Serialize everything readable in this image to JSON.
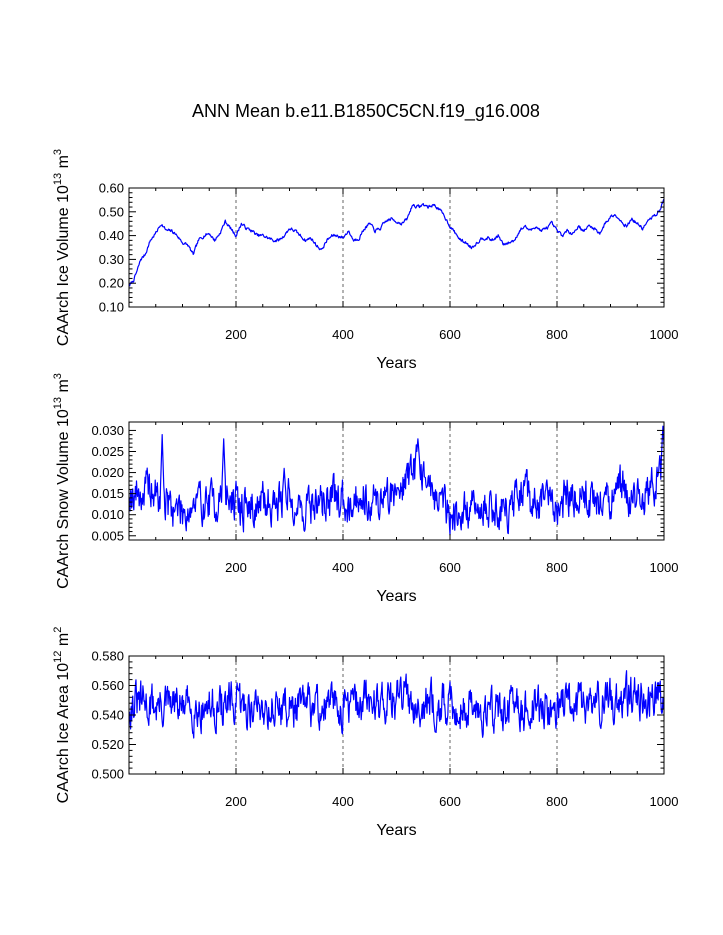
{
  "chart_data": {
    "title": "ANN Mean b.e11.B1850C5CN.f19_g16.008",
    "series_color": "#0000ff",
    "panels": [
      {
        "type": "line",
        "ylabel_main": "CAArch Ice Volume 10",
        "ylabel_sup": "13",
        "ylabel_unit": " m",
        "ylabel_unit_sup": "3",
        "xlabel": "Years",
        "xlim": [
          0,
          1000
        ],
        "ylim": [
          0.1,
          0.6
        ],
        "xticks": [
          200,
          400,
          600,
          800,
          1000
        ],
        "xtick_labels": [
          "200",
          "400",
          "600",
          "800",
          "1000"
        ],
        "yticks": [
          0.1,
          0.2,
          0.3,
          0.4,
          0.5,
          0.6
        ],
        "ytick_labels": [
          "0.10",
          "0.20",
          "0.30",
          "0.40",
          "0.50",
          "0.60"
        ],
        "grid_x": [
          200,
          400,
          600,
          800
        ],
        "anchors": [
          [
            1,
            0.19
          ],
          [
            8,
            0.21
          ],
          [
            15,
            0.25
          ],
          [
            22,
            0.3
          ],
          [
            30,
            0.32
          ],
          [
            40,
            0.38
          ],
          [
            50,
            0.41
          ],
          [
            60,
            0.45
          ],
          [
            70,
            0.42
          ],
          [
            80,
            0.42
          ],
          [
            90,
            0.4
          ],
          [
            100,
            0.37
          ],
          [
            110,
            0.36
          ],
          [
            120,
            0.32
          ],
          [
            130,
            0.38
          ],
          [
            140,
            0.4
          ],
          [
            150,
            0.41
          ],
          [
            160,
            0.38
          ],
          [
            170,
            0.41
          ],
          [
            180,
            0.46
          ],
          [
            190,
            0.43
          ],
          [
            200,
            0.4
          ],
          [
            210,
            0.45
          ],
          [
            220,
            0.43
          ],
          [
            230,
            0.42
          ],
          [
            240,
            0.4
          ],
          [
            250,
            0.4
          ],
          [
            260,
            0.39
          ],
          [
            270,
            0.38
          ],
          [
            280,
            0.38
          ],
          [
            290,
            0.4
          ],
          [
            300,
            0.43
          ],
          [
            310,
            0.42
          ],
          [
            320,
            0.4
          ],
          [
            330,
            0.38
          ],
          [
            340,
            0.39
          ],
          [
            350,
            0.36
          ],
          [
            360,
            0.34
          ],
          [
            370,
            0.38
          ],
          [
            380,
            0.4
          ],
          [
            390,
            0.4
          ],
          [
            400,
            0.39
          ],
          [
            410,
            0.42
          ],
          [
            420,
            0.38
          ],
          [
            430,
            0.39
          ],
          [
            440,
            0.43
          ],
          [
            450,
            0.45
          ],
          [
            460,
            0.42
          ],
          [
            470,
            0.43
          ],
          [
            480,
            0.46
          ],
          [
            490,
            0.47
          ],
          [
            500,
            0.46
          ],
          [
            510,
            0.45
          ],
          [
            520,
            0.47
          ],
          [
            530,
            0.53
          ],
          [
            540,
            0.52
          ],
          [
            550,
            0.53
          ],
          [
            560,
            0.52
          ],
          [
            570,
            0.53
          ],
          [
            580,
            0.51
          ],
          [
            590,
            0.48
          ],
          [
            600,
            0.44
          ],
          [
            610,
            0.41
          ],
          [
            620,
            0.38
          ],
          [
            630,
            0.37
          ],
          [
            640,
            0.35
          ],
          [
            650,
            0.37
          ],
          [
            660,
            0.39
          ],
          [
            670,
            0.39
          ],
          [
            680,
            0.38
          ],
          [
            690,
            0.4
          ],
          [
            700,
            0.36
          ],
          [
            710,
            0.37
          ],
          [
            720,
            0.38
          ],
          [
            730,
            0.42
          ],
          [
            740,
            0.44
          ],
          [
            750,
            0.42
          ],
          [
            760,
            0.44
          ],
          [
            770,
            0.42
          ],
          [
            780,
            0.43
          ],
          [
            790,
            0.45
          ],
          [
            800,
            0.42
          ],
          [
            810,
            0.4
          ],
          [
            820,
            0.42
          ],
          [
            830,
            0.41
          ],
          [
            840,
            0.44
          ],
          [
            850,
            0.42
          ],
          [
            860,
            0.44
          ],
          [
            870,
            0.43
          ],
          [
            880,
            0.41
          ],
          [
            890,
            0.45
          ],
          [
            900,
            0.48
          ],
          [
            910,
            0.49
          ],
          [
            920,
            0.46
          ],
          [
            930,
            0.44
          ],
          [
            940,
            0.47
          ],
          [
            950,
            0.45
          ],
          [
            960,
            0.43
          ],
          [
            970,
            0.46
          ],
          [
            980,
            0.48
          ],
          [
            990,
            0.5
          ],
          [
            1000,
            0.55
          ]
        ],
        "noise_amp": 0.008,
        "seed": 7
      },
      {
        "type": "line",
        "ylabel_main": "CAArch Snow Volume 10",
        "ylabel_sup": "13",
        "ylabel_unit": " m",
        "ylabel_unit_sup": "3",
        "xlabel": "Years",
        "xlim": [
          0,
          1000
        ],
        "ylim": [
          0.004,
          0.032
        ],
        "xticks": [
          200,
          400,
          600,
          800,
          1000
        ],
        "xtick_labels": [
          "200",
          "400",
          "600",
          "800",
          "1000"
        ],
        "yticks": [
          0.005,
          0.01,
          0.015,
          0.02,
          0.025,
          0.03
        ],
        "ytick_labels": [
          "0.005",
          "0.010",
          "0.015",
          "0.020",
          "0.025",
          "0.030"
        ],
        "grid_x": [
          200,
          400,
          600,
          800
        ],
        "anchors": [
          [
            1,
            0.016
          ],
          [
            20,
            0.015
          ],
          [
            40,
            0.016
          ],
          [
            60,
            0.013
          ],
          [
            80,
            0.012
          ],
          [
            100,
            0.011
          ],
          [
            120,
            0.012
          ],
          [
            140,
            0.013
          ],
          [
            160,
            0.013
          ],
          [
            180,
            0.015
          ],
          [
            200,
            0.012
          ],
          [
            220,
            0.012
          ],
          [
            240,
            0.012
          ],
          [
            260,
            0.013
          ],
          [
            280,
            0.013
          ],
          [
            300,
            0.014
          ],
          [
            320,
            0.011
          ],
          [
            340,
            0.012
          ],
          [
            360,
            0.013
          ],
          [
            380,
            0.014
          ],
          [
            400,
            0.013
          ],
          [
            420,
            0.014
          ],
          [
            440,
            0.015
          ],
          [
            460,
            0.013
          ],
          [
            480,
            0.014
          ],
          [
            500,
            0.016
          ],
          [
            520,
            0.019
          ],
          [
            540,
            0.022
          ],
          [
            560,
            0.017
          ],
          [
            580,
            0.014
          ],
          [
            600,
            0.011
          ],
          [
            620,
            0.01
          ],
          [
            640,
            0.011
          ],
          [
            660,
            0.012
          ],
          [
            680,
            0.012
          ],
          [
            700,
            0.011
          ],
          [
            720,
            0.012
          ],
          [
            740,
            0.015
          ],
          [
            760,
            0.012
          ],
          [
            780,
            0.014
          ],
          [
            800,
            0.012
          ],
          [
            820,
            0.015
          ],
          [
            840,
            0.015
          ],
          [
            860,
            0.014
          ],
          [
            880,
            0.013
          ],
          [
            900,
            0.013
          ],
          [
            920,
            0.016
          ],
          [
            940,
            0.014
          ],
          [
            960,
            0.014
          ],
          [
            980,
            0.016
          ],
          [
            1000,
            0.022
          ]
        ],
        "noise_amp": 0.0055,
        "seed": 19,
        "spikes": [
          [
            62,
            0.029
          ],
          [
            177,
            0.028
          ],
          [
            290,
            0.021
          ],
          [
            540,
            0.028
          ],
          [
            998,
            0.031
          ]
        ]
      },
      {
        "type": "line",
        "ylabel_main": "CAArch Ice Area 10",
        "ylabel_sup": "12",
        "ylabel_unit": " m",
        "ylabel_unit_sup": "2",
        "xlabel": "Years",
        "xlim": [
          0,
          1000
        ],
        "ylim": [
          0.5,
          0.58
        ],
        "xticks": [
          200,
          400,
          600,
          800,
          1000
        ],
        "xtick_labels": [
          "200",
          "400",
          "600",
          "800",
          "1000"
        ],
        "yticks": [
          0.5,
          0.52,
          0.54,
          0.56,
          0.58
        ],
        "ytick_labels": [
          "0.500",
          "0.520",
          "0.540",
          "0.560",
          "0.580"
        ],
        "grid_x": [
          200,
          400,
          600,
          800
        ],
        "anchors": [
          [
            1,
            0.548
          ],
          [
            100,
            0.545
          ],
          [
            200,
            0.546
          ],
          [
            300,
            0.545
          ],
          [
            400,
            0.546
          ],
          [
            500,
            0.552
          ],
          [
            600,
            0.546
          ],
          [
            700,
            0.543
          ],
          [
            800,
            0.546
          ],
          [
            900,
            0.549
          ],
          [
            1000,
            0.556
          ]
        ],
        "noise_amp": 0.016,
        "seed": 31
      }
    ]
  }
}
